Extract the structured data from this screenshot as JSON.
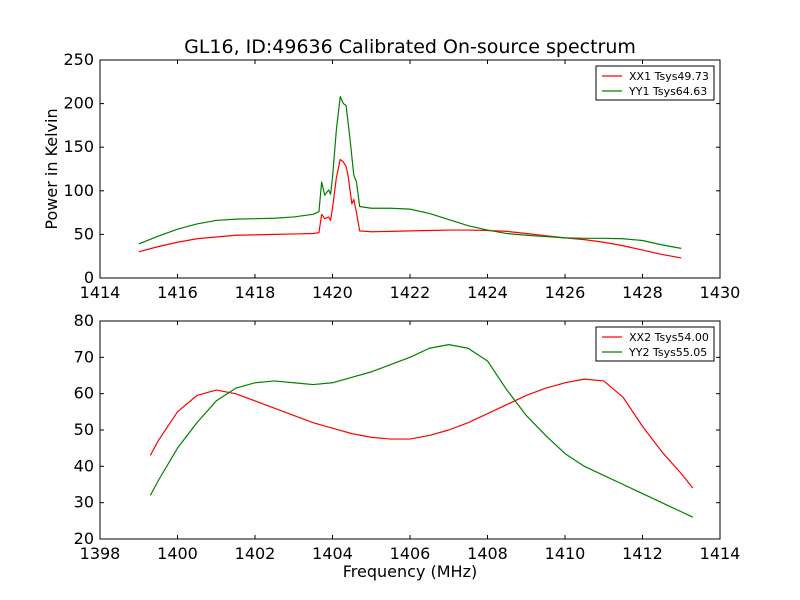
{
  "figure": {
    "title": "GL16, ID:49636 Calibrated On-source spectrum",
    "ylabel": "Power in Kelvin",
    "xlabel": "Frequency (MHz)"
  },
  "chart_data": [
    {
      "type": "line",
      "xlim": [
        1414,
        1430
      ],
      "ylim": [
        0,
        250
      ],
      "xticks": [
        1414,
        1416,
        1418,
        1420,
        1422,
        1424,
        1426,
        1428,
        1430
      ],
      "yticks": [
        0,
        50,
        100,
        150,
        200,
        250
      ],
      "legend": "top-right",
      "grid": false,
      "series": [
        {
          "name": "XX1 Tsys49.73",
          "color": "#ff0000",
          "x": [
            1415.0,
            1415.5,
            1416.0,
            1416.5,
            1417.0,
            1417.5,
            1418.0,
            1418.5,
            1419.0,
            1419.5,
            1419.65,
            1419.72,
            1419.8,
            1419.9,
            1419.95,
            1420.0,
            1420.1,
            1420.2,
            1420.28,
            1420.35,
            1420.4,
            1420.5,
            1420.55,
            1420.62,
            1420.7,
            1421.0,
            1421.5,
            1422.0,
            1422.5,
            1423.0,
            1423.5,
            1424.0,
            1424.5,
            1425.0,
            1425.5,
            1426.0,
            1426.5,
            1427.0,
            1427.5,
            1428.0,
            1428.5,
            1429.0
          ],
          "values": [
            30,
            36,
            41,
            45,
            47,
            49,
            49.5,
            50,
            50.5,
            51,
            52,
            73,
            68,
            70,
            66,
            80,
            115,
            136,
            133,
            128,
            118,
            85,
            90,
            75,
            54,
            53,
            53.5,
            54,
            54.5,
            55,
            55,
            54.5,
            53.5,
            51,
            48.5,
            46,
            44,
            41,
            37,
            32,
            27,
            23
          ]
        },
        {
          "name": "YY1 Tsys64.63",
          "color": "#008000",
          "x": [
            1415.0,
            1415.5,
            1416.0,
            1416.5,
            1417.0,
            1417.5,
            1418.0,
            1418.5,
            1419.0,
            1419.5,
            1419.65,
            1419.72,
            1419.8,
            1419.9,
            1419.95,
            1420.0,
            1420.1,
            1420.2,
            1420.28,
            1420.35,
            1420.45,
            1420.55,
            1420.62,
            1420.7,
            1421.0,
            1421.5,
            1422.0,
            1422.5,
            1423.0,
            1423.5,
            1424.0,
            1424.5,
            1425.0,
            1425.5,
            1426.0,
            1426.5,
            1427.0,
            1427.5,
            1428.0,
            1428.5,
            1429.0
          ],
          "values": [
            39,
            48,
            56,
            62,
            66,
            67.5,
            68,
            68.5,
            70,
            73,
            76,
            110,
            95,
            101,
            96,
            115,
            170,
            208,
            200,
            198,
            160,
            118,
            110,
            82,
            80,
            80,
            79,
            74,
            67,
            60,
            55,
            51,
            49,
            47.5,
            46,
            45.5,
            45.5,
            45,
            43,
            38,
            34
          ]
        }
      ]
    },
    {
      "type": "line",
      "xlim": [
        1398,
        1414
      ],
      "ylim": [
        20,
        80
      ],
      "xticks": [
        1398,
        1400,
        1402,
        1404,
        1406,
        1408,
        1410,
        1412,
        1414
      ],
      "yticks": [
        20,
        30,
        40,
        50,
        60,
        70,
        80
      ],
      "legend": "top-right",
      "grid": false,
      "series": [
        {
          "name": "XX2 Tsys54.00",
          "color": "#ff0000",
          "x": [
            1399.3,
            1399.5,
            1400.0,
            1400.5,
            1401.0,
            1401.5,
            1402.0,
            1402.5,
            1403.0,
            1403.5,
            1404.0,
            1404.5,
            1405.0,
            1405.5,
            1406.0,
            1406.5,
            1407.0,
            1407.5,
            1408.0,
            1408.5,
            1409.0,
            1409.5,
            1410.0,
            1410.5,
            1411.0,
            1411.5,
            1412.0,
            1412.5,
            1413.0,
            1413.3
          ],
          "values": [
            43,
            47,
            55,
            59.5,
            61,
            60,
            58,
            56,
            54,
            52,
            50.5,
            49,
            48,
            47.5,
            47.5,
            48.5,
            50,
            52,
            54.5,
            57,
            59.5,
            61.5,
            63,
            64,
            63.5,
            59,
            51,
            44,
            38,
            34
          ]
        },
        {
          "name": "YY2 Tsys55.05",
          "color": "#008000",
          "x": [
            1399.3,
            1399.5,
            1400.0,
            1400.5,
            1401.0,
            1401.5,
            1402.0,
            1402.5,
            1403.0,
            1403.5,
            1404.0,
            1404.5,
            1405.0,
            1405.5,
            1406.0,
            1406.5,
            1407.0,
            1407.5,
            1408.0,
            1408.5,
            1409.0,
            1409.5,
            1410.0,
            1410.5,
            1411.0,
            1411.5,
            1412.0,
            1412.5,
            1413.0,
            1413.3
          ],
          "values": [
            32,
            36,
            45,
            52,
            58,
            61.5,
            63,
            63.5,
            63,
            62.5,
            63,
            64.5,
            66,
            68,
            70,
            72.5,
            73.5,
            72.5,
            69,
            61,
            54,
            48.5,
            43.5,
            40,
            37.5,
            35,
            32.5,
            30,
            27.5,
            26
          ]
        }
      ]
    }
  ]
}
